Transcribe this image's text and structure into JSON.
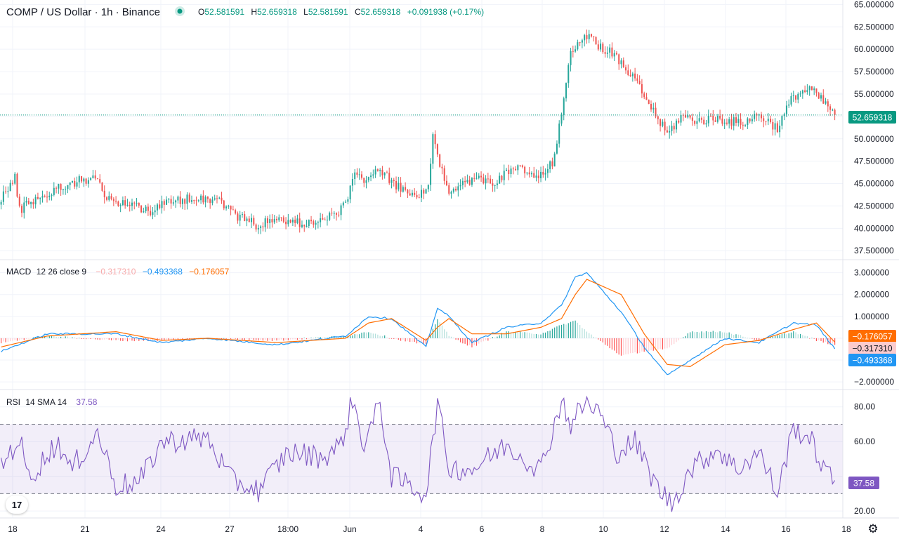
{
  "header": {
    "title": "COMP / US Dollar · 1h · Binance",
    "open_label": "O",
    "open": "52.581591",
    "high_label": "H",
    "high": "52.659318",
    "low_label": "L",
    "low": "52.581591",
    "close_label": "C",
    "close": "52.659318",
    "change": "+0.091938 (+0.17%)"
  },
  "macd_legend": {
    "name": "MACD",
    "params": "12 26 close 9",
    "hist": "−0.317310",
    "macd": "−0.493368",
    "signal": "−0.176057"
  },
  "rsi_legend": {
    "name": "RSI",
    "params": "14 SMA 14",
    "value": "37.58"
  },
  "price_axis": {
    "ticks": [
      "65.000000",
      "62.500000",
      "60.000000",
      "57.500000",
      "55.000000",
      "52.500000",
      "50.000000",
      "47.500000",
      "45.000000",
      "42.500000",
      "40.000000",
      "37.500000"
    ],
    "current_badge": "52.659318"
  },
  "macd_axis": {
    "ticks": [
      "3.000000",
      "2.000000",
      "1.000000",
      "−2.000000"
    ],
    "badges": [
      "−0.176057",
      "−0.317310",
      "−0.493368"
    ]
  },
  "rsi_axis": {
    "ticks": [
      "80.00",
      "60.00",
      "20.00"
    ],
    "badge": "37.58"
  },
  "time_axis": {
    "ticks": [
      "18",
      "21",
      "24",
      "27",
      "18:00",
      "Jun",
      "4",
      "6",
      "8",
      "10",
      "12",
      "14",
      "16",
      "18"
    ]
  },
  "logo_text": "17",
  "icons": {
    "settings": "gear-icon",
    "logo": "tradingview-logo-icon",
    "status": "market-open-dot-icon"
  },
  "colors": {
    "up": "#26a69a",
    "down": "#ef5350",
    "macd_line": "#2196f3",
    "signal_line": "#ff6d00",
    "rsi_line": "#7e57c2",
    "rsi_band": "#7e57c2",
    "badge_green": "#089981"
  },
  "chart_data": [
    {
      "type": "candlestick",
      "title": "COMP / US Dollar · 1h · Binance",
      "ylim": [
        36.5,
        65.5
      ],
      "x_ticks": [
        "18",
        "21",
        "24",
        "27",
        "18:00",
        "Jun",
        "4",
        "6",
        "8",
        "10",
        "12",
        "14",
        "16",
        "18"
      ],
      "y_ticks": [
        65,
        62.5,
        60,
        57.5,
        55,
        52.5,
        50,
        47.5,
        45,
        42.5,
        40,
        37.5
      ],
      "last_price": 52.659318,
      "path_closes": [
        [
          0,
          43.5
        ],
        [
          4,
          44.8
        ],
        [
          6,
          45.6
        ],
        [
          8,
          42.0
        ],
        [
          12,
          43.0
        ],
        [
          18,
          43.5
        ],
        [
          25,
          44.5
        ],
        [
          32,
          45.2
        ],
        [
          42,
          45.8
        ],
        [
          45,
          43.2
        ],
        [
          55,
          42.8
        ],
        [
          65,
          42.0
        ],
        [
          72,
          42.8
        ],
        [
          84,
          43.5
        ],
        [
          95,
          43.2
        ],
        [
          102,
          41.5
        ],
        [
          112,
          40.3
        ],
        [
          119,
          41.0
        ],
        [
          130,
          40.6
        ],
        [
          140,
          40.8
        ],
        [
          150,
          42.5
        ],
        [
          153,
          46.0
        ],
        [
          158,
          45.6
        ],
        [
          166,
          46.4
        ],
        [
          170,
          45.0
        ],
        [
          180,
          43.5
        ],
        [
          186,
          44.5
        ],
        [
          188,
          50.0
        ],
        [
          194,
          44.3
        ],
        [
          205,
          45.5
        ],
        [
          215,
          45.2
        ],
        [
          224,
          46.8
        ],
        [
          234,
          45.6
        ],
        [
          240,
          47.2
        ],
        [
          244,
          52.5
        ],
        [
          248,
          60.0
        ],
        [
          254,
          61.5
        ],
        [
          266,
          59.5
        ],
        [
          276,
          56.5
        ],
        [
          283,
          53.5
        ],
        [
          290,
          50.5
        ],
        [
          296,
          52.5
        ],
        [
          304,
          52.0
        ],
        [
          312,
          52.3
        ],
        [
          322,
          51.7
        ],
        [
          330,
          52.7
        ],
        [
          338,
          51.2
        ],
        [
          345,
          54.8
        ],
        [
          352,
          55.6
        ],
        [
          360,
          53.6
        ],
        [
          363,
          52.66
        ]
      ]
    },
    {
      "type": "line",
      "title": "MACD 12 26 close 9",
      "ylim": [
        -2.35,
        3.6
      ],
      "y_ticks": [
        3,
        2,
        1,
        -2
      ],
      "series": [
        {
          "name": "MACD",
          "values": [
            [
              0,
              -0.6
            ],
            [
              20,
              0.2
            ],
            [
              50,
              0.2
            ],
            [
              70,
              -0.2
            ],
            [
              90,
              0.0
            ],
            [
              120,
              -0.3
            ],
            [
              150,
              0.1
            ],
            [
              160,
              1.0
            ],
            [
              170,
              0.9
            ],
            [
              185,
              -0.4
            ],
            [
              190,
              1.4
            ],
            [
              195,
              1.0
            ],
            [
              205,
              -0.2
            ],
            [
              220,
              0.5
            ],
            [
              235,
              0.7
            ],
            [
              244,
              1.5
            ],
            [
              250,
              2.8
            ],
            [
              255,
              3.0
            ],
            [
              270,
              1.2
            ],
            [
              280,
              -0.4
            ],
            [
              290,
              -1.7
            ],
            [
              300,
              -1.0
            ],
            [
              315,
              0.0
            ],
            [
              330,
              -0.2
            ],
            [
              345,
              0.7
            ],
            [
              355,
              0.6
            ],
            [
              363,
              -0.49
            ]
          ]
        },
        {
          "name": "signal",
          "values": [
            [
              0,
              -0.4
            ],
            [
              20,
              0.1
            ],
            [
              50,
              0.3
            ],
            [
              70,
              -0.1
            ],
            [
              90,
              0.0
            ],
            [
              120,
              -0.2
            ],
            [
              150,
              0.0
            ],
            [
              160,
              0.7
            ],
            [
              170,
              0.9
            ],
            [
              185,
              -0.1
            ],
            [
              190,
              0.5
            ],
            [
              195,
              0.9
            ],
            [
              205,
              0.2
            ],
            [
              220,
              0.2
            ],
            [
              235,
              0.5
            ],
            [
              244,
              0.9
            ],
            [
              250,
              2.0
            ],
            [
              255,
              2.7
            ],
            [
              270,
              2.0
            ],
            [
              280,
              0.2
            ],
            [
              290,
              -1.2
            ],
            [
              300,
              -1.3
            ],
            [
              315,
              -0.3
            ],
            [
              330,
              -0.1
            ],
            [
              345,
              0.4
            ],
            [
              355,
              0.7
            ],
            [
              363,
              -0.18
            ]
          ]
        }
      ],
      "last_values": {
        "histogram": -0.31731,
        "macd": -0.493368,
        "signal": -0.176057
      }
    },
    {
      "type": "line",
      "title": "RSI 14 SMA 14",
      "ylim": [
        16,
        90
      ],
      "y_ticks": [
        80,
        60,
        20
      ],
      "bands": [
        70,
        30
      ],
      "series": [
        {
          "name": "RSI",
          "values": [
            [
              0,
              46
            ],
            [
              8,
              62
            ],
            [
              12,
              39
            ],
            [
              25,
              60
            ],
            [
              30,
              43
            ],
            [
              42,
              65
            ],
            [
              50,
              35
            ],
            [
              60,
              36
            ],
            [
              70,
              60
            ],
            [
              90,
              62
            ],
            [
              100,
              38
            ],
            [
              112,
              32
            ],
            [
              125,
              54
            ],
            [
              140,
              51
            ],
            [
              148,
              58
            ],
            [
              153,
              84
            ],
            [
              158,
              58
            ],
            [
              165,
              82
            ],
            [
              170,
              40
            ],
            [
              185,
              30
            ],
            [
              190,
              82
            ],
            [
              195,
              45
            ],
            [
              205,
              44
            ],
            [
              220,
              58
            ],
            [
              235,
              44
            ],
            [
              244,
              84
            ],
            [
              248,
              70
            ],
            [
              254,
              82
            ],
            [
              260,
              78
            ],
            [
              268,
              54
            ],
            [
              276,
              60
            ],
            [
              285,
              35
            ],
            [
              292,
              24
            ],
            [
              300,
              44
            ],
            [
              312,
              56
            ],
            [
              320,
              44
            ],
            [
              330,
              54
            ],
            [
              338,
              30
            ],
            [
              345,
              68
            ],
            [
              352,
              62
            ],
            [
              360,
              40
            ],
            [
              363,
              37.58
            ]
          ]
        }
      ],
      "last_value": 37.58
    }
  ]
}
